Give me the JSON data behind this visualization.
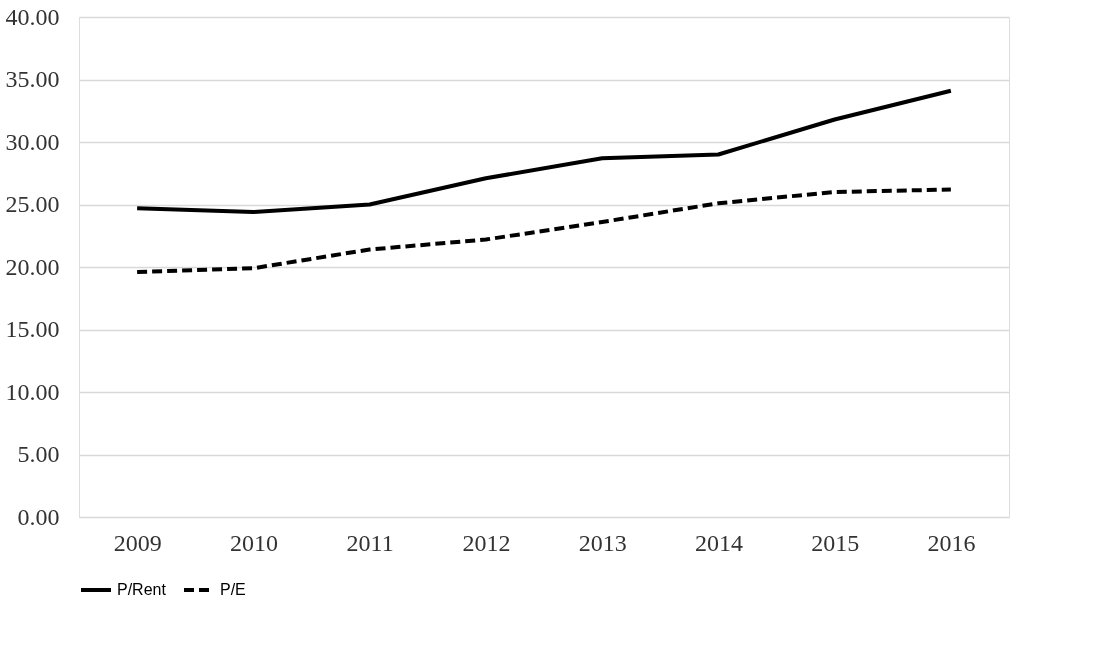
{
  "chart_data": {
    "type": "line",
    "categories": [
      "2009",
      "2010",
      "2011",
      "2012",
      "2013",
      "2014",
      "2015",
      "2016"
    ],
    "series": [
      {
        "name": "P/Rent",
        "color": "#000000",
        "line_style": "solid",
        "values": [
          24.7,
          24.4,
          25.0,
          27.1,
          28.7,
          29.0,
          31.8,
          34.1
        ]
      },
      {
        "name": "P/E",
        "color": "#000000",
        "line_style": "dashed",
        "values": [
          19.6,
          19.9,
          21.4,
          22.2,
          23.6,
          25.1,
          26.0,
          26.2
        ]
      }
    ],
    "ylim": [
      0,
      40
    ],
    "yticks": [
      {
        "value": 0,
        "label": "0.00"
      },
      {
        "value": 5,
        "label": "5.00"
      },
      {
        "value": 10,
        "label": "10.00"
      },
      {
        "value": 15,
        "label": "15.00"
      },
      {
        "value": 20,
        "label": "20.00"
      },
      {
        "value": 25,
        "label": "25.00"
      },
      {
        "value": 30,
        "label": "30.00"
      },
      {
        "value": 35,
        "label": "35.00"
      },
      {
        "value": 40,
        "label": "40.00"
      }
    ],
    "grid": "y",
    "legend": "bottom",
    "marker": "none"
  }
}
